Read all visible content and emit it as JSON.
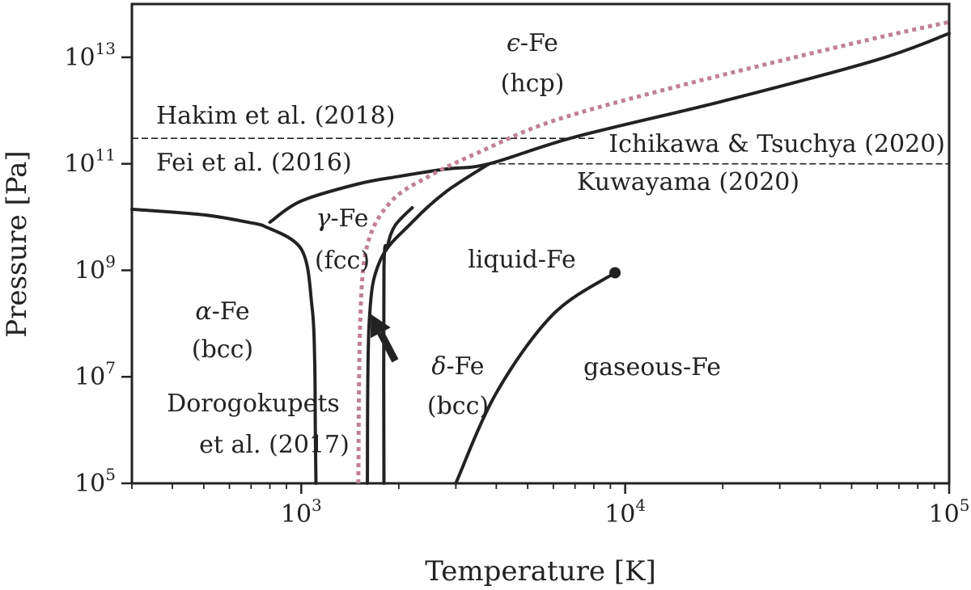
{
  "chart_data": {
    "type": "line",
    "xlabel": "Temperature [K]",
    "ylabel": "Pressure [Pa]",
    "xscale": "log",
    "yscale": "log",
    "xlim": [
      300,
      100000
    ],
    "ylim": [
      100000,
      100000000000000
    ],
    "x_ticks": [
      {
        "value": 1000,
        "base": "10",
        "exp": "3"
      },
      {
        "value": 10000,
        "base": "10",
        "exp": "4"
      },
      {
        "value": 100000,
        "base": "10",
        "exp": "5"
      }
    ],
    "y_ticks": [
      {
        "value": 100000,
        "base": "10",
        "exp": "5"
      },
      {
        "value": 10000000,
        "base": "10",
        "exp": "7"
      },
      {
        "value": 1000000000,
        "base": "10",
        "exp": "9"
      },
      {
        "value": 100000000000,
        "base": "10",
        "exp": "11"
      },
      {
        "value": 10000000000000,
        "base": "10",
        "exp": "13"
      }
    ],
    "colors": {
      "phase_boundary": "#222222",
      "dotted_boundary": "#c08096",
      "reference_lines": "#222222"
    },
    "series": [
      {
        "style": "solid",
        "x": [
          300,
          500,
          700,
          760
        ],
        "y": [
          14000000000,
          11000000000,
          7800000000,
          7000000000
        ]
      },
      {
        "style": "solid",
        "x": [
          760,
          1000,
          1080,
          1100,
          1105,
          1110
        ],
        "y": [
          7000000000,
          2500000000,
          200000000,
          20000000,
          1000000,
          100000
        ]
      },
      {
        "style": "solid",
        "x": [
          800,
          1000,
          1500,
          2000,
          2800,
          3800,
          7000,
          20000,
          60000,
          100000
        ],
        "y": [
          8000000000,
          20000000000,
          42000000000,
          58000000000,
          80000000000,
          100000000000,
          320000000000,
          1500000000000,
          9000000000000,
          28000000000000
        ]
      },
      {
        "style": "solid",
        "x": [
          1600,
          1620,
          1750,
          2200,
          2800,
          3800
        ],
        "y": [
          100000,
          100000000,
          1500000000,
          8000000000,
          30000000000,
          100000000000
        ]
      },
      {
        "style": "solid",
        "x": [
          1800,
          1800,
          1850,
          1950,
          2200
        ],
        "y": [
          100000,
          1000000000,
          3000000000,
          7000000000,
          15000000000
        ]
      },
      {
        "style": "solid",
        "x": [
          3000,
          4000,
          6000,
          9300
        ],
        "y": [
          100000,
          5000000,
          150000000,
          900000000
        ]
      },
      {
        "style": "dotted",
        "x": [
          1500,
          1520,
          1600,
          1900,
          2500,
          3500,
          6000,
          15000,
          50000,
          100000
        ],
        "y": [
          100000,
          100000000,
          3000000000,
          20000000000,
          60000000000,
          160000000000,
          640000000000,
          3000000000000,
          18000000000000,
          46000000000000
        ]
      }
    ],
    "critical_point": {
      "x": 9300,
      "y": 900000000
    },
    "reference_lines": [
      {
        "style": "dashed",
        "y": 300000000000,
        "x_from": 300,
        "x_to": 8000
      },
      {
        "style": "dashed",
        "y": 100000000000,
        "x_from": 3800,
        "x_to": 100000
      }
    ],
    "arrow": {
      "from": {
        "x": 1950,
        "y": 20000000
      },
      "to": {
        "x": 1640,
        "y": 150000000
      }
    },
    "annotations": {
      "alpha_fe": {
        "sym": "α",
        "name": "-Fe",
        "sub": "(bcc)"
      },
      "gamma_fe": {
        "sym": "γ",
        "name": "-Fe",
        "sub": "(fcc)"
      },
      "delta_fe": {
        "sym": "δ",
        "name": "-Fe",
        "sub": "(bcc)"
      },
      "epsilon_fe": {
        "sym": "ϵ",
        "name": "-Fe",
        "sub": "(hcp)"
      },
      "liquid_fe": "liquid-Fe",
      "gaseous_fe": "gaseous-Fe",
      "dorogokupets": [
        "Dorogokupets",
        "et al. (2017)"
      ],
      "hakim": "Hakim et al. (2018)",
      "fei": "Fei et al. (2016)",
      "ichikawa": "Ichikawa & Tsuchya (2020)",
      "kuwayama": "Kuwayama (2020)"
    }
  }
}
